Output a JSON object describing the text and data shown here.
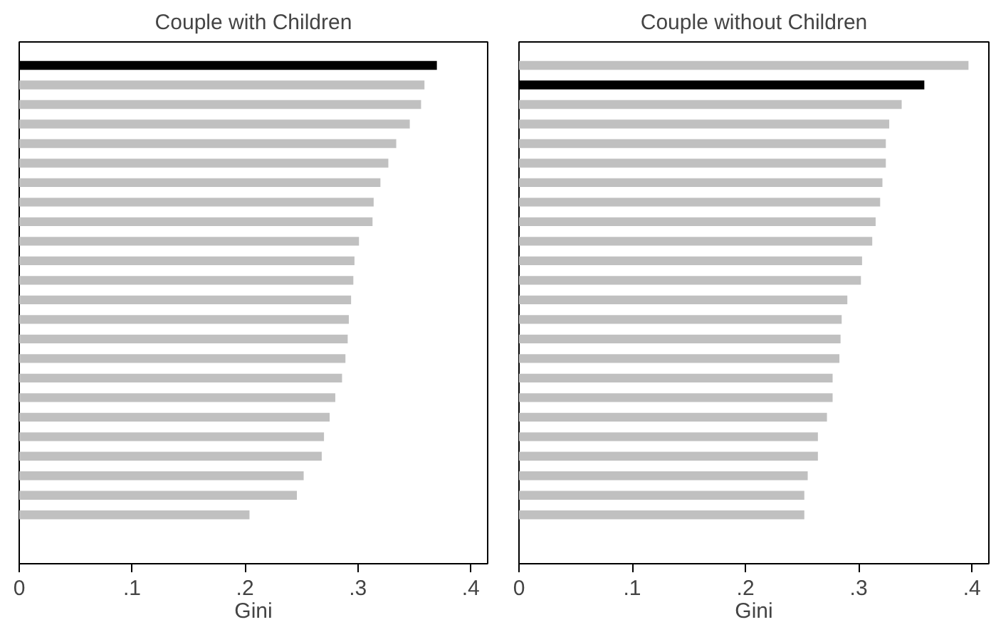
{
  "chart_data": [
    {
      "type": "bar",
      "orientation": "horizontal",
      "title": "Couple with Children",
      "xlabel": "Gini",
      "categories": [
        null,
        null,
        null,
        null,
        null,
        null,
        null,
        null,
        null,
        null,
        null,
        null,
        null,
        null,
        null,
        null,
        null,
        null,
        null,
        null,
        null,
        null,
        null,
        null
      ],
      "values": [
        0.37,
        0.359,
        0.356,
        0.346,
        0.334,
        0.327,
        0.32,
        0.314,
        0.313,
        0.301,
        0.297,
        0.296,
        0.294,
        0.292,
        0.291,
        0.289,
        0.286,
        0.28,
        0.275,
        0.27,
        0.268,
        0.252,
        0.246,
        0.204
      ],
      "colors": [
        "#000000",
        "#c0c0c0",
        "#c0c0c0",
        "#c0c0c0",
        "#c0c0c0",
        "#c0c0c0",
        "#c0c0c0",
        "#c0c0c0",
        "#c0c0c0",
        "#c0c0c0",
        "#c0c0c0",
        "#c0c0c0",
        "#c0c0c0",
        "#c0c0c0",
        "#c0c0c0",
        "#c0c0c0",
        "#c0c0c0",
        "#c0c0c0",
        "#c0c0c0",
        "#c0c0c0",
        "#c0c0c0",
        "#c0c0c0",
        "#c0c0c0",
        "#c0c0c0"
      ],
      "xlim": [
        0,
        0.415
      ],
      "xticks": [
        {
          "value": 0,
          "label": "0"
        },
        {
          "value": 0.1,
          "label": ".1"
        },
        {
          "value": 0.2,
          "label": ".2"
        },
        {
          "value": 0.3,
          "label": ".3"
        },
        {
          "value": 0.4,
          "label": ".4"
        }
      ],
      "tick_labels": "x",
      "grid": false
    },
    {
      "type": "bar",
      "orientation": "horizontal",
      "title": "Couple without Children",
      "xlabel": "Gini",
      "categories": [
        null,
        null,
        null,
        null,
        null,
        null,
        null,
        null,
        null,
        null,
        null,
        null,
        null,
        null,
        null,
        null,
        null,
        null,
        null,
        null,
        null,
        null,
        null,
        null
      ],
      "values": [
        0.397,
        0.358,
        0.338,
        0.327,
        0.324,
        0.324,
        0.321,
        0.319,
        0.315,
        0.312,
        0.303,
        0.302,
        0.29,
        0.285,
        0.284,
        0.283,
        0.277,
        0.277,
        0.272,
        0.264,
        0.264,
        0.255,
        0.252,
        0.252
      ],
      "colors": [
        "#c0c0c0",
        "#000000",
        "#c0c0c0",
        "#c0c0c0",
        "#c0c0c0",
        "#c0c0c0",
        "#c0c0c0",
        "#c0c0c0",
        "#c0c0c0",
        "#c0c0c0",
        "#c0c0c0",
        "#c0c0c0",
        "#c0c0c0",
        "#c0c0c0",
        "#c0c0c0",
        "#c0c0c0",
        "#c0c0c0",
        "#c0c0c0",
        "#c0c0c0",
        "#c0c0c0",
        "#c0c0c0",
        "#c0c0c0",
        "#c0c0c0",
        "#c0c0c0"
      ],
      "xlim": [
        0,
        0.415
      ],
      "xticks": [
        {
          "value": 0,
          "label": "0"
        },
        {
          "value": 0.1,
          "label": ".1"
        },
        {
          "value": 0.2,
          "label": ".2"
        },
        {
          "value": 0.3,
          "label": ".3"
        },
        {
          "value": 0.4,
          "label": ".4"
        }
      ],
      "tick_labels": "x",
      "grid": false
    }
  ]
}
